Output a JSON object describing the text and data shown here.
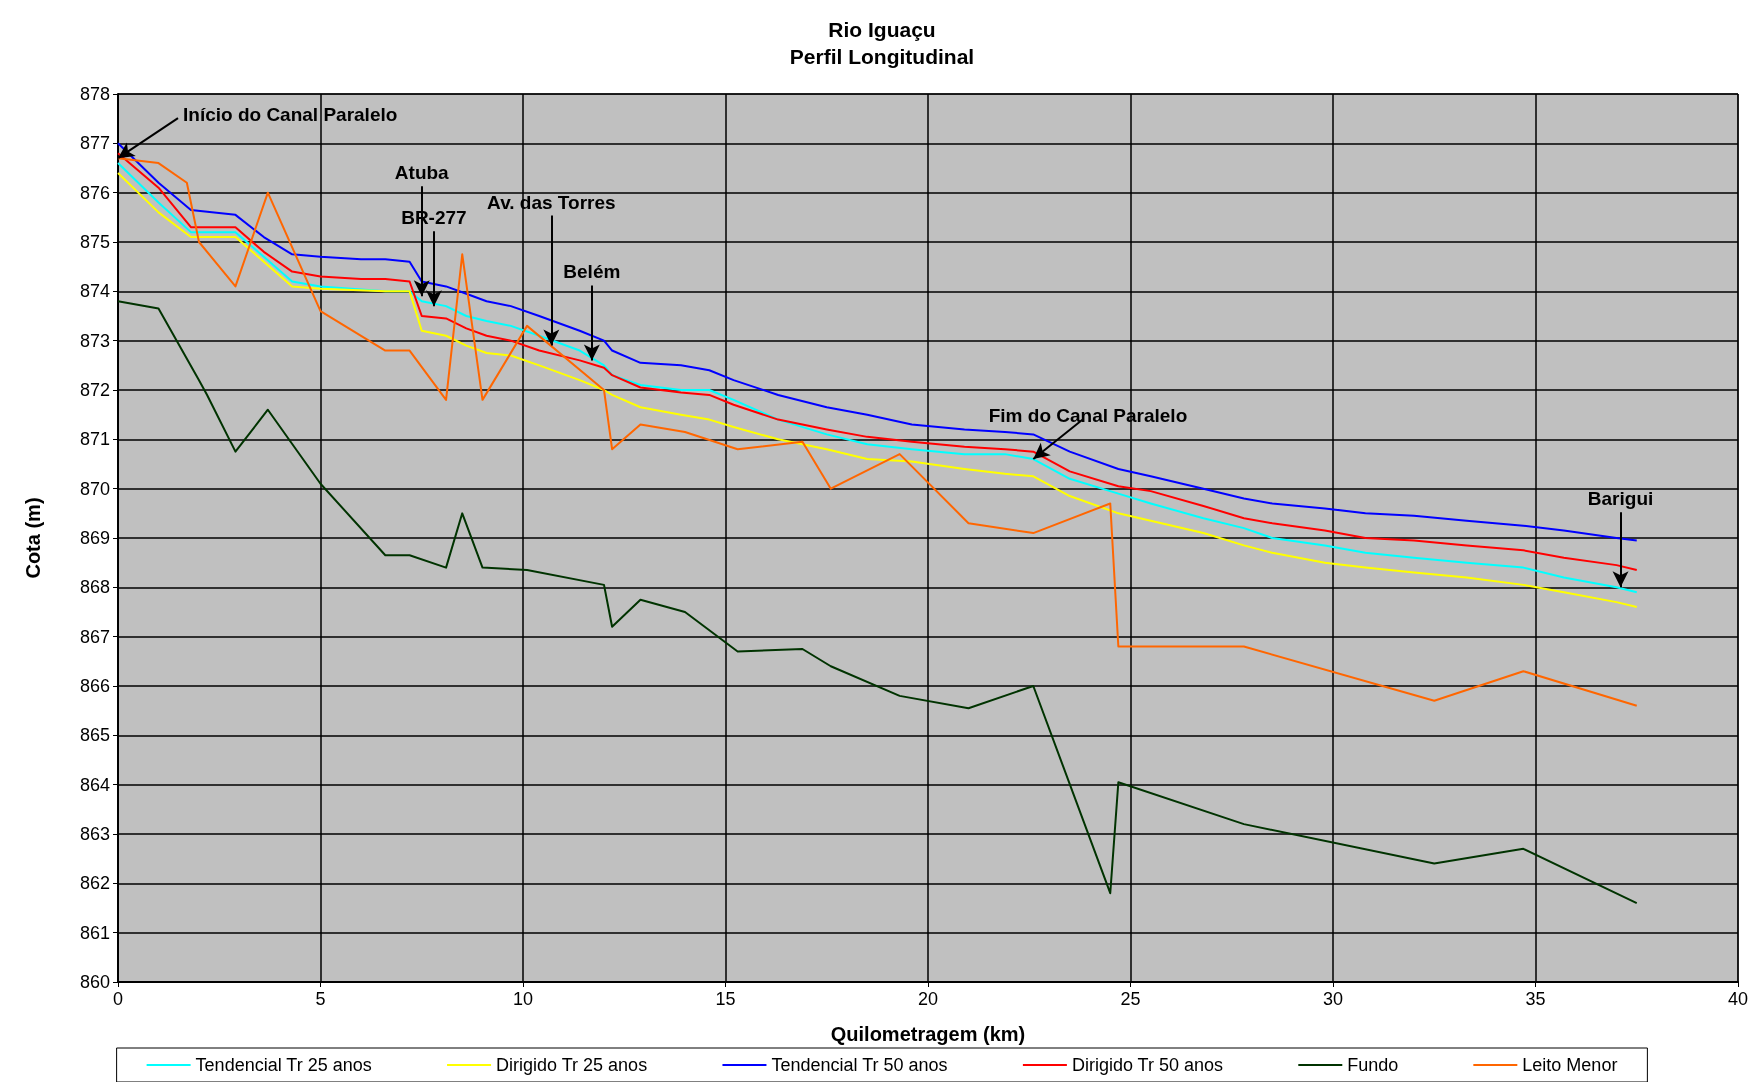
{
  "chart_data": {
    "type": "line",
    "title": "Rio Iguaçu",
    "subtitle": "Perfil Longitudinal",
    "xlabel": "Quilometragem (km)",
    "ylabel": "Cota (m)",
    "xlim": [
      0,
      40
    ],
    "xticks": [
      0,
      5,
      10,
      15,
      20,
      25,
      30,
      35,
      40
    ],
    "ylim": [
      860,
      878
    ],
    "yticks": [
      860,
      861,
      862,
      863,
      864,
      865,
      866,
      867,
      868,
      869,
      870,
      871,
      872,
      873,
      874,
      875,
      876,
      877,
      878
    ],
    "grid": true,
    "legend": "bottom",
    "marker": "none",
    "line_style": "solid",
    "series": [
      {
        "name": "Tendencial Tr 25 anos",
        "color": "#00ffff",
        "x": [
          0,
          1,
          1.8,
          2.9,
          3.6,
          4.3,
          5,
          6.6,
          7.2,
          7.5,
          8.1,
          8.6,
          9.1,
          9.7,
          10.4,
          11.4,
          12,
          12.2,
          12.9,
          13.9,
          14.6,
          15.2,
          16.3,
          17.5,
          18.5,
          19.6,
          20.9,
          21.9,
          22.6,
          23.5,
          24.7,
          25.5,
          26.8,
          27.8,
          28.5,
          29.8,
          30.8,
          32,
          33.3,
          34.7,
          35.7,
          37,
          37.5
        ],
        "values": [
          876.6,
          875.8,
          875.2,
          875.2,
          874.7,
          874.2,
          874.1,
          874.0,
          874.0,
          873.8,
          873.7,
          873.5,
          873.4,
          873.3,
          873.1,
          872.8,
          872.5,
          872.3,
          872.1,
          872.0,
          872.0,
          871.8,
          871.4,
          871.1,
          870.9,
          870.8,
          870.7,
          870.7,
          870.6,
          870.2,
          869.9,
          869.7,
          869.4,
          869.2,
          869.0,
          868.85,
          868.7,
          868.6,
          868.5,
          868.4,
          868.2,
          868.0,
          867.9
        ]
      },
      {
        "name": "Dirigido Tr 25 anos",
        "color": "#ffff00",
        "x": [
          0,
          1,
          1.8,
          2.9,
          3.6,
          4.3,
          5,
          6.6,
          7.2,
          7.5,
          8.1,
          8.6,
          9.1,
          9.7,
          10.4,
          11.4,
          12,
          12.2,
          12.9,
          13.9,
          14.6,
          15.2,
          16.3,
          17.5,
          18.5,
          19.6,
          20.9,
          21.9,
          22.6,
          23.5,
          24.7,
          25.5,
          26.8,
          27.8,
          28.5,
          29.8,
          30.8,
          32,
          33.3,
          34.7,
          35.7,
          37,
          37.5
        ],
        "values": [
          876.4,
          875.6,
          875.1,
          875.1,
          874.6,
          874.1,
          874.05,
          874.0,
          874.0,
          873.2,
          873.1,
          872.9,
          872.75,
          872.7,
          872.5,
          872.2,
          872.0,
          871.9,
          871.65,
          871.5,
          871.4,
          871.25,
          871.0,
          870.8,
          870.6,
          870.55,
          870.4,
          870.3,
          870.25,
          869.85,
          869.5,
          869.35,
          869.1,
          868.85,
          868.7,
          868.5,
          868.4,
          868.3,
          868.2,
          868.05,
          867.9,
          867.7,
          867.6
        ]
      },
      {
        "name": "Tendencial Tr 50 anos",
        "color": "#0000ff",
        "x": [
          0,
          1,
          1.8,
          2.9,
          3.6,
          4.3,
          5,
          6,
          6.6,
          7.2,
          7.5,
          8.1,
          8.6,
          9.1,
          9.7,
          10.4,
          11.4,
          12,
          12.2,
          12.9,
          13.9,
          14.6,
          15.2,
          16.3,
          17.5,
          18.5,
          19.6,
          20.9,
          21.9,
          22.6,
          23.5,
          24.7,
          25.5,
          26.8,
          27.8,
          28.5,
          29.8,
          30.8,
          32,
          33.3,
          34.7,
          35.7,
          37,
          37.5
        ],
        "values": [
          877.0,
          876.2,
          875.65,
          875.55,
          875.1,
          874.75,
          874.7,
          874.65,
          874.65,
          874.6,
          874.2,
          874.1,
          873.95,
          873.8,
          873.7,
          873.5,
          873.2,
          873.0,
          872.8,
          872.55,
          872.5,
          872.4,
          872.2,
          871.9,
          871.65,
          871.5,
          871.3,
          871.2,
          871.15,
          871.1,
          870.75,
          870.4,
          870.25,
          870.0,
          869.8,
          869.7,
          869.6,
          869.5,
          869.45,
          869.35,
          869.25,
          869.15,
          869.0,
          868.95
        ]
      },
      {
        "name": "Dirigido Tr 50 anos",
        "color": "#ff0000",
        "x": [
          0,
          1,
          1.8,
          2.9,
          3.6,
          4.3,
          5,
          6,
          6.6,
          7.2,
          7.5,
          8.1,
          8.6,
          9.1,
          9.7,
          10.4,
          11.4,
          12,
          12.2,
          12.9,
          13.9,
          14.6,
          15.2,
          16.3,
          17.5,
          18.5,
          19.6,
          20.9,
          21.9,
          22.6,
          23.5,
          24.7,
          25.5,
          26.8,
          27.8,
          28.5,
          29.8,
          30.8,
          32,
          33.3,
          34.7,
          35.7,
          37,
          37.5
        ],
        "values": [
          876.8,
          876.1,
          875.3,
          875.3,
          874.8,
          874.4,
          874.3,
          874.25,
          874.25,
          874.2,
          873.5,
          873.45,
          873.25,
          873.1,
          873.0,
          872.8,
          872.6,
          872.45,
          872.3,
          872.05,
          871.95,
          871.9,
          871.7,
          871.4,
          871.2,
          871.05,
          870.95,
          870.85,
          870.8,
          870.75,
          870.35,
          870.05,
          869.95,
          869.65,
          869.4,
          869.3,
          869.15,
          869.0,
          868.95,
          868.85,
          868.75,
          868.6,
          868.45,
          868.35
        ]
      },
      {
        "name": "Fundo",
        "color": "#003300",
        "x": [
          0,
          1,
          2,
          2.2,
          2.9,
          3.7,
          5,
          6.6,
          7.2,
          8.1,
          8.5,
          9,
          10.1,
          12,
          12.2,
          12.9,
          14,
          15.3,
          16.9,
          17.6,
          19.3,
          21,
          22.6,
          24.5,
          24.7,
          27.8,
          32.5,
          34.7,
          37.5
        ],
        "values": [
          873.8,
          873.65,
          872.2,
          871.9,
          870.75,
          871.6,
          870.1,
          868.65,
          868.65,
          868.4,
          869.5,
          868.4,
          868.35,
          868.05,
          867.2,
          867.75,
          867.5,
          866.7,
          866.75,
          866.4,
          865.8,
          865.55,
          866.0,
          861.8,
          864.05,
          863.2,
          862.4,
          862.7,
          861.6
        ]
      },
      {
        "name": "Leito Menor",
        "color": "#ff6600",
        "x": [
          0,
          1,
          1.7,
          2,
          2.9,
          3.7,
          5,
          6.6,
          7.2,
          8.1,
          8.5,
          9,
          10.1,
          12,
          12.2,
          12.9,
          14,
          15.3,
          16.9,
          17.6,
          19.3,
          21,
          22.6,
          24.5,
          24.7,
          27.8,
          32.5,
          34.7,
          37.5
        ],
        "values": [
          876.7,
          876.6,
          876.2,
          875.0,
          874.1,
          876.0,
          873.6,
          872.8,
          872.8,
          871.8,
          874.75,
          871.8,
          873.3,
          872.0,
          870.8,
          871.3,
          871.15,
          870.8,
          870.95,
          870.0,
          870.7,
          869.3,
          869.1,
          869.7,
          866.8,
          866.8,
          865.7,
          866.3,
          865.6
        ]
      }
    ],
    "annotations": [
      {
        "text": "Início do Canal Paralelo",
        "x": 0,
        "y": 876.7
      },
      {
        "text": "Atuba",
        "x": 7.5,
        "y": 873.9
      },
      {
        "text": "BR-277",
        "x": 7.8,
        "y": 873.7
      },
      {
        "text": "Av. das Torres",
        "x": 10.7,
        "y": 872.9
      },
      {
        "text": "Belém",
        "x": 11.7,
        "y": 872.6
      },
      {
        "text": "Fim do Canal Paralelo",
        "x": 22.6,
        "y": 870.6
      },
      {
        "text": "Barigui",
        "x": 37.1,
        "y": 868.0
      }
    ]
  }
}
